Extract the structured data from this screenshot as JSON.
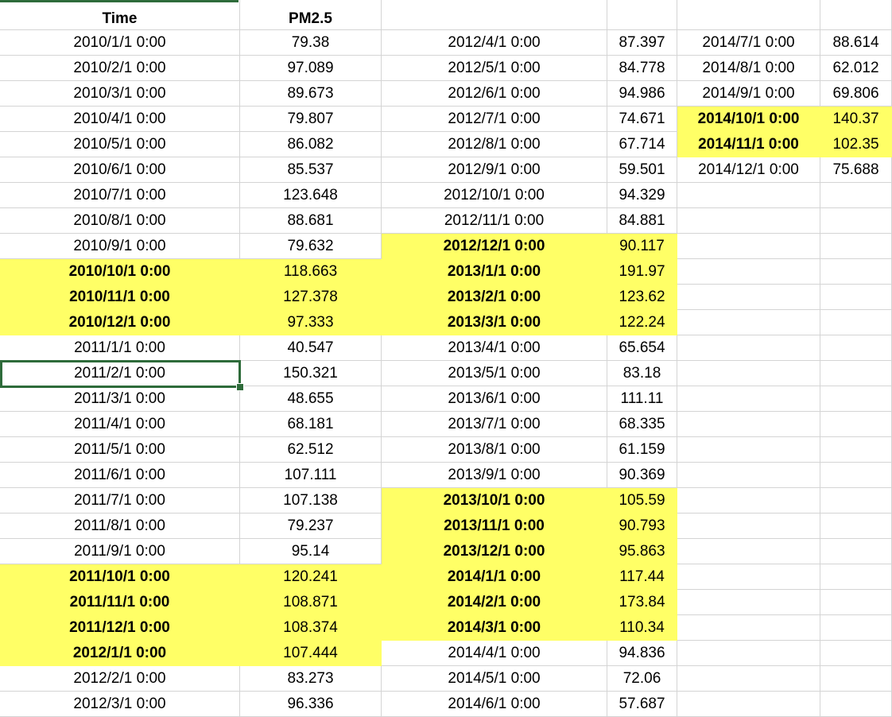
{
  "header": {
    "time": "Time",
    "pm25": "PM2.5"
  },
  "highlight_color": "#ffff66",
  "selection_color": "#2e6b3a",
  "selected_cell": {
    "column": 0,
    "row": 13
  },
  "column_groups": [
    {
      "rows": [
        {
          "t": "2010/1/1 0:00",
          "v": "79.38",
          "hl": false
        },
        {
          "t": "2010/2/1 0:00",
          "v": "97.089",
          "hl": false
        },
        {
          "t": "2010/3/1 0:00",
          "v": "89.673",
          "hl": false
        },
        {
          "t": "2010/4/1 0:00",
          "v": "79.807",
          "hl": false
        },
        {
          "t": "2010/5/1 0:00",
          "v": "86.082",
          "hl": false
        },
        {
          "t": "2010/6/1 0:00",
          "v": "85.537",
          "hl": false
        },
        {
          "t": "2010/7/1 0:00",
          "v": "123.648",
          "hl": false
        },
        {
          "t": "2010/8/1 0:00",
          "v": "88.681",
          "hl": false
        },
        {
          "t": "2010/9/1 0:00",
          "v": "79.632",
          "hl": false
        },
        {
          "t": "2010/10/1 0:00",
          "v": "118.663",
          "hl": true
        },
        {
          "t": "2010/11/1 0:00",
          "v": "127.378",
          "hl": true
        },
        {
          "t": "2010/12/1 0:00",
          "v": "97.333",
          "hl": true
        },
        {
          "t": "2011/1/1 0:00",
          "v": "40.547",
          "hl": false
        },
        {
          "t": "2011/2/1 0:00",
          "v": "150.321",
          "hl": false
        },
        {
          "t": "2011/3/1 0:00",
          "v": "48.655",
          "hl": false
        },
        {
          "t": "2011/4/1 0:00",
          "v": "68.181",
          "hl": false
        },
        {
          "t": "2011/5/1 0:00",
          "v": "62.512",
          "hl": false
        },
        {
          "t": "2011/6/1 0:00",
          "v": "107.111",
          "hl": false
        },
        {
          "t": "2011/7/1 0:00",
          "v": "107.138",
          "hl": false
        },
        {
          "t": "2011/8/1 0:00",
          "v": "79.237",
          "hl": false
        },
        {
          "t": "2011/9/1 0:00",
          "v": "95.14",
          "hl": false
        },
        {
          "t": "2011/10/1 0:00",
          "v": "120.241",
          "hl": true
        },
        {
          "t": "2011/11/1 0:00",
          "v": "108.871",
          "hl": true
        },
        {
          "t": "2011/12/1 0:00",
          "v": "108.374",
          "hl": true
        },
        {
          "t": "2012/1/1 0:00",
          "v": "107.444",
          "hl": true
        },
        {
          "t": "2012/2/1 0:00",
          "v": "83.273",
          "hl": false
        },
        {
          "t": "2012/3/1 0:00",
          "v": "96.336",
          "hl": false
        }
      ]
    },
    {
      "rows": [
        {
          "t": "2012/4/1 0:00",
          "v": "87.397",
          "hl": false
        },
        {
          "t": "2012/5/1 0:00",
          "v": "84.778",
          "hl": false
        },
        {
          "t": "2012/6/1 0:00",
          "v": "94.986",
          "hl": false
        },
        {
          "t": "2012/7/1 0:00",
          "v": "74.671",
          "hl": false
        },
        {
          "t": "2012/8/1 0:00",
          "v": "67.714",
          "hl": false
        },
        {
          "t": "2012/9/1 0:00",
          "v": "59.501",
          "hl": false
        },
        {
          "t": "2012/10/1 0:00",
          "v": "94.329",
          "hl": false
        },
        {
          "t": "2012/11/1 0:00",
          "v": "84.881",
          "hl": false
        },
        {
          "t": "2012/12/1 0:00",
          "v": "90.117",
          "hl": true
        },
        {
          "t": "2013/1/1 0:00",
          "v": "191.97",
          "hl": true
        },
        {
          "t": "2013/2/1 0:00",
          "v": "123.62",
          "hl": true
        },
        {
          "t": "2013/3/1 0:00",
          "v": "122.24",
          "hl": true
        },
        {
          "t": "2013/4/1 0:00",
          "v": "65.654",
          "hl": false
        },
        {
          "t": "2013/5/1 0:00",
          "v": "83.18",
          "hl": false
        },
        {
          "t": "2013/6/1 0:00",
          "v": "111.11",
          "hl": false
        },
        {
          "t": "2013/7/1 0:00",
          "v": "68.335",
          "hl": false
        },
        {
          "t": "2013/8/1 0:00",
          "v": "61.159",
          "hl": false
        },
        {
          "t": "2013/9/1 0:00",
          "v": "90.369",
          "hl": false
        },
        {
          "t": "2013/10/1 0:00",
          "v": "105.59",
          "hl": true
        },
        {
          "t": "2013/11/1 0:00",
          "v": "90.793",
          "hl": true
        },
        {
          "t": "2013/12/1 0:00",
          "v": "95.863",
          "hl": true
        },
        {
          "t": "2014/1/1 0:00",
          "v": "117.44",
          "hl": true
        },
        {
          "t": "2014/2/1 0:00",
          "v": "173.84",
          "hl": true
        },
        {
          "t": "2014/3/1 0:00",
          "v": "110.34",
          "hl": true
        },
        {
          "t": "2014/4/1 0:00",
          "v": "94.836",
          "hl": false
        },
        {
          "t": "2014/5/1 0:00",
          "v": "72.06",
          "hl": false
        },
        {
          "t": "2014/6/1 0:00",
          "v": "57.687",
          "hl": false
        }
      ]
    },
    {
      "rows": [
        {
          "t": "2014/7/1 0:00",
          "v": "88.614",
          "hl": false
        },
        {
          "t": "2014/8/1 0:00",
          "v": "62.012",
          "hl": false
        },
        {
          "t": "2014/9/1 0:00",
          "v": "69.806",
          "hl": false
        },
        {
          "t": "2014/10/1 0:00",
          "v": "140.37",
          "hl": true
        },
        {
          "t": "2014/11/1 0:00",
          "v": "102.35",
          "hl": true
        },
        {
          "t": "2014/12/1 0:00",
          "v": "75.688",
          "hl": false
        }
      ]
    }
  ]
}
